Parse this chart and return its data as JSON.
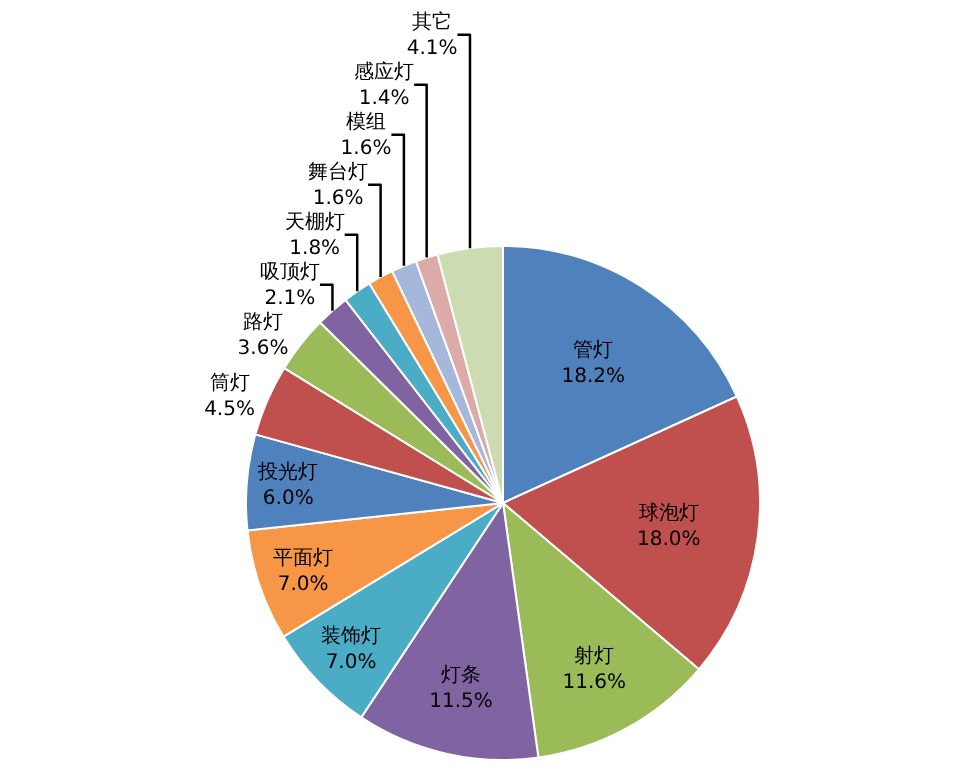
{
  "chart_data": {
    "type": "pie",
    "categories": [
      "管灯",
      "球泡灯",
      "射灯",
      "灯条",
      "装饰灯",
      "平面灯",
      "投光灯",
      "筒灯",
      "路灯",
      "吸顶灯",
      "天棚灯",
      "舞台灯",
      "模组",
      "感应灯",
      "其它"
    ],
    "values": [
      18.2,
      18.0,
      11.6,
      11.5,
      7.0,
      7.0,
      6.0,
      4.5,
      3.6,
      2.1,
      1.8,
      1.6,
      1.6,
      1.4,
      4.1
    ],
    "colors": [
      "#4f81bd",
      "#c0504d",
      "#9bbb59",
      "#8064a2",
      "#4bacc6",
      "#f79646",
      "#4f81bd",
      "#c0504d",
      "#9bbb59",
      "#8064a2",
      "#4bacc6",
      "#f79646",
      "#a5b8db",
      "#dcaaa9",
      "#cddbb0"
    ],
    "value_labels": [
      "18.2%",
      "18.0%",
      "11.6%",
      "11.5%",
      "7.0%",
      "7.0%",
      "6.0%",
      "4.5%",
      "3.6%",
      "2.1%",
      "1.8%",
      "1.6%",
      "1.6%",
      "1.4%",
      "4.1%"
    ],
    "legend": false
  }
}
